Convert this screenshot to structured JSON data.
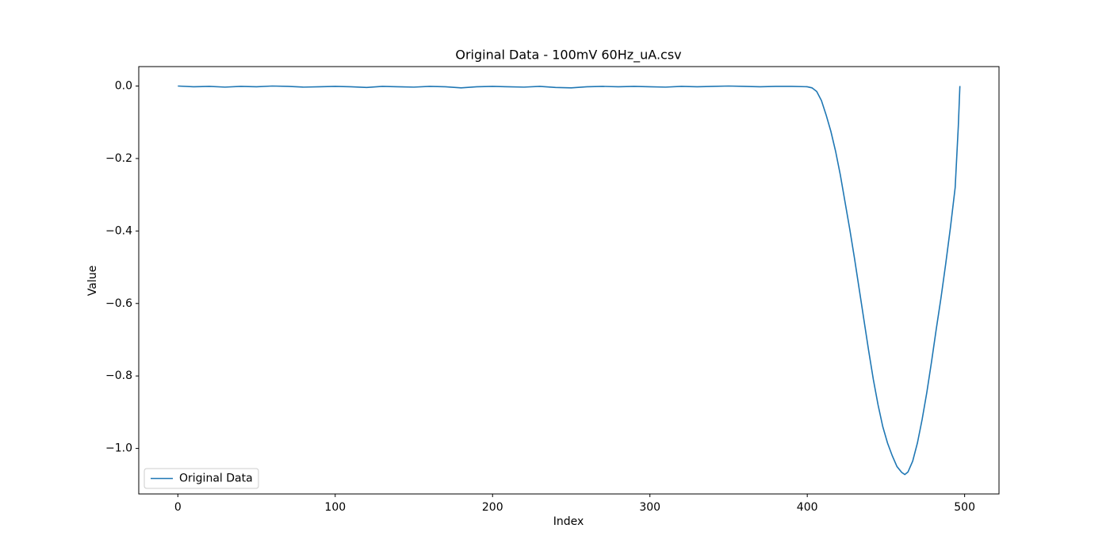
{
  "chart_data": {
    "type": "line",
    "title": "Original Data - 100mV 60Hz_uA.csv",
    "x_label": "Index",
    "y_label": "Value",
    "x": [
      0,
      10,
      20,
      30,
      40,
      50,
      60,
      70,
      80,
      90,
      100,
      110,
      120,
      130,
      140,
      150,
      160,
      170,
      180,
      190,
      200,
      210,
      220,
      230,
      240,
      250,
      260,
      270,
      280,
      290,
      300,
      310,
      320,
      330,
      340,
      350,
      360,
      370,
      380,
      390,
      400,
      403,
      406,
      409,
      412,
      415,
      418,
      421,
      424,
      427,
      430,
      433,
      436,
      439,
      442,
      445,
      448,
      451,
      454,
      457,
      460,
      462,
      464,
      467,
      470,
      473,
      476,
      479,
      482,
      485,
      488,
      491,
      494,
      496,
      497
    ],
    "series": [
      {
        "name": "Original Data",
        "color": "#1f77b4",
        "values": [
          0,
          -0.002,
          -0.001,
          -0.003,
          -0.001,
          -0.002,
          0,
          -0.001,
          -0.003,
          -0.002,
          -0.001,
          -0.002,
          -0.004,
          -0.001,
          -0.002,
          -0.003,
          -0.001,
          -0.002,
          -0.005,
          -0.002,
          -0.001,
          -0.002,
          -0.003,
          -0.001,
          -0.004,
          -0.005,
          -0.002,
          -0.001,
          -0.002,
          -0.001,
          -0.002,
          -0.003,
          -0.001,
          -0.002,
          -0.001,
          0,
          -0.001,
          -0.002,
          -0.001,
          -0.001,
          -0.002,
          -0.005,
          -0.015,
          -0.04,
          -0.08,
          -0.125,
          -0.18,
          -0.245,
          -0.32,
          -0.395,
          -0.475,
          -0.56,
          -0.645,
          -0.73,
          -0.81,
          -0.88,
          -0.94,
          -0.985,
          -1.02,
          -1.05,
          -1.066,
          -1.072,
          -1.065,
          -1.035,
          -0.985,
          -0.92,
          -0.845,
          -0.76,
          -0.67,
          -0.584,
          -0.49,
          -0.39,
          -0.28,
          -0.11,
          0
        ]
      }
    ],
    "xlim": [
      -24.85,
      521.85
    ],
    "xticks": [
      0,
      100,
      200,
      300,
      400,
      500
    ],
    "ylim": [
      -1.1256,
      0.0536
    ],
    "yticks": [
      {
        "value": 0,
        "label": "0.0"
      },
      {
        "value": -0.2,
        "label": "−0.2"
      },
      {
        "value": -0.4,
        "label": "−0.4"
      },
      {
        "value": -0.6,
        "label": "−0.6"
      },
      {
        "value": -0.8,
        "label": "−0.8"
      },
      {
        "value": -1.0,
        "label": "−1.0"
      }
    ],
    "legend": "lower left"
  }
}
